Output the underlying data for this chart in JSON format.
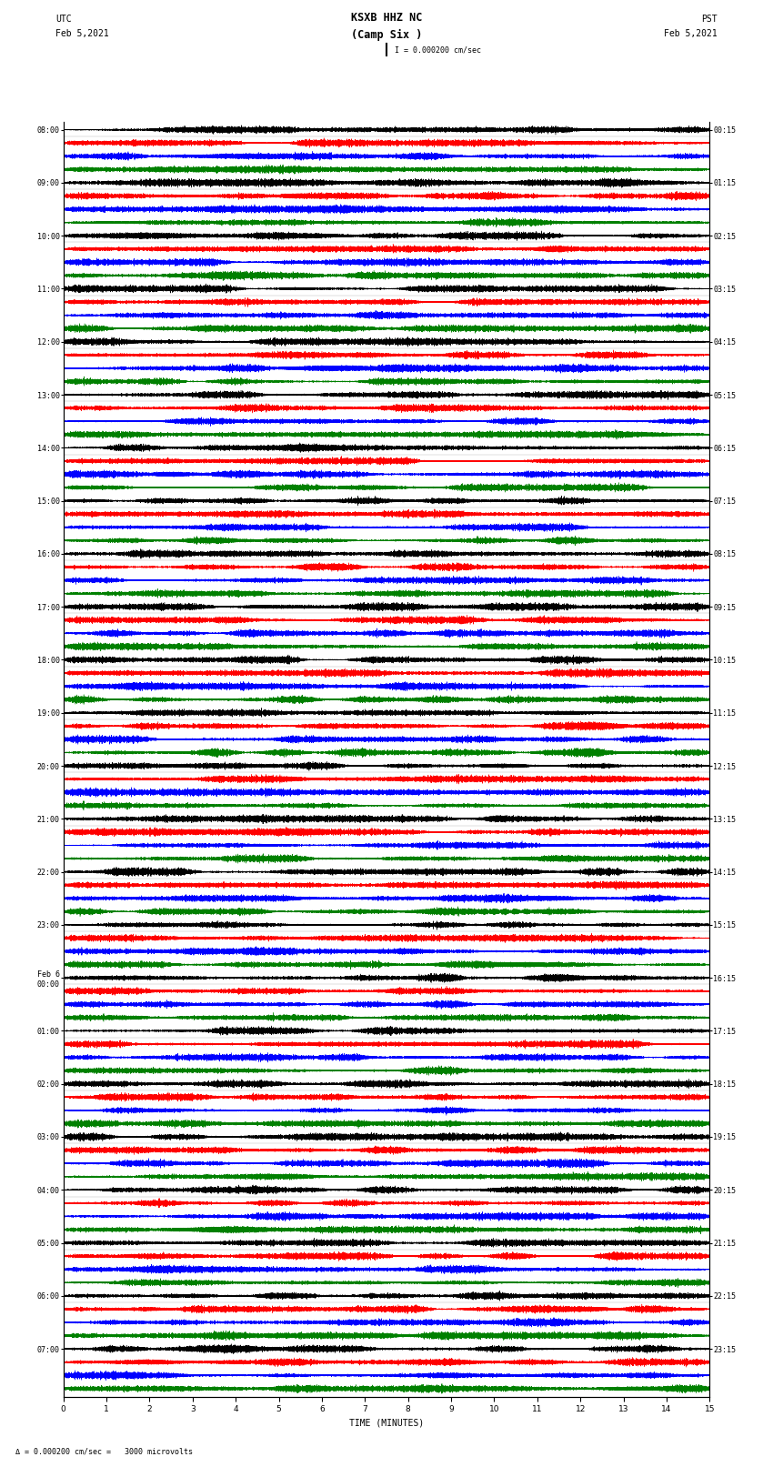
{
  "title_line1": "KSXB HHZ NC",
  "title_line2": "(Camp Six )",
  "left_label_top": "UTC",
  "left_label_date": "Feb 5,2021",
  "right_label_top": "PST",
  "right_label_date": "Feb 5,2021",
  "scale_label": "Δ = 0.000200 cm/sec =   3000 microvolts",
  "xlabel": "TIME (MINUTES)",
  "scale_bar_label": "I = 0.000200 cm/sec",
  "xmin": 0,
  "xmax": 15,
  "sample_rate": 100,
  "row_colors": [
    "black",
    "red",
    "blue",
    "green"
  ],
  "left_times_labeled": [
    "08:00",
    "09:00",
    "10:00",
    "11:00",
    "12:00",
    "13:00",
    "14:00",
    "15:00",
    "16:00",
    "17:00",
    "18:00",
    "19:00",
    "20:00",
    "21:00",
    "22:00",
    "23:00",
    "Feb 6\n00:00",
    "01:00",
    "02:00",
    "03:00",
    "04:00",
    "05:00",
    "06:00",
    "07:00"
  ],
  "right_times_labeled": [
    "00:15",
    "01:15",
    "02:15",
    "03:15",
    "04:15",
    "05:15",
    "06:15",
    "07:15",
    "08:15",
    "09:15",
    "10:15",
    "11:15",
    "12:15",
    "13:15",
    "14:15",
    "15:15",
    "16:15",
    "17:15",
    "18:15",
    "19:15",
    "20:15",
    "21:15",
    "22:15",
    "23:15"
  ],
  "n_hour_groups": 24,
  "traces_per_group": 4,
  "bg_color": "white",
  "trace_amplitude": 0.38,
  "noise_base": 0.08,
  "fig_width": 8.5,
  "fig_height": 16.13
}
